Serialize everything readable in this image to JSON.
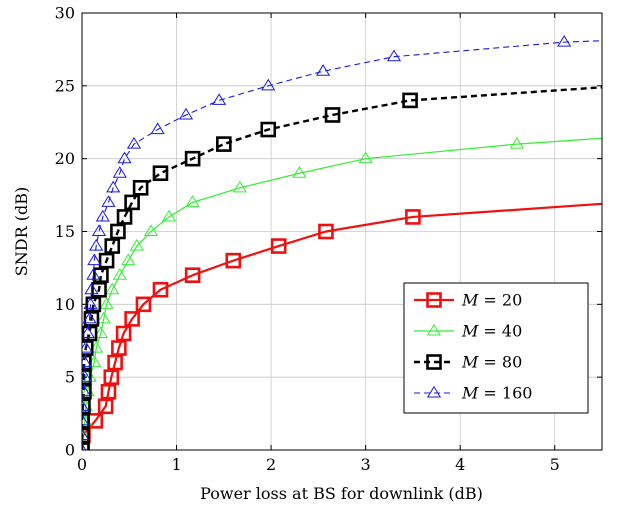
{
  "chart_data": {
    "type": "line",
    "title": "",
    "xlabel": "Power loss at BS for downlink (dB)",
    "ylabel": "SNDR (dB)",
    "xlim": [
      0,
      5.5
    ],
    "ylim": [
      0,
      30
    ],
    "xticks": [
      0,
      1,
      2,
      3,
      4,
      5
    ],
    "yticks": [
      0,
      5,
      10,
      15,
      20,
      25,
      30
    ],
    "xtick_labels": [
      "0",
      "1",
      "2",
      "3",
      "4",
      "5"
    ],
    "ytick_labels": [
      "0",
      "5",
      "10",
      "15",
      "20",
      "25",
      "30"
    ],
    "grid": true,
    "legend_position": "bottom-right",
    "series": [
      {
        "name": "M = 20",
        "legend_var": "M",
        "legend_value": "= 20",
        "color": "#ee1111",
        "line_style": "solid",
        "marker": "square",
        "points": [
          [
            0.0,
            0
          ],
          [
            0.01,
            1
          ],
          [
            0.14,
            2
          ],
          [
            0.25,
            3
          ],
          [
            0.28,
            4
          ],
          [
            0.31,
            5
          ],
          [
            0.35,
            6
          ],
          [
            0.39,
            7
          ],
          [
            0.44,
            8
          ],
          [
            0.53,
            9
          ],
          [
            0.65,
            10
          ],
          [
            0.83,
            11
          ],
          [
            1.17,
            12
          ],
          [
            1.6,
            13
          ],
          [
            2.08,
            14
          ],
          [
            2.58,
            15
          ],
          [
            3.5,
            16
          ],
          [
            5.5,
            16.9
          ]
        ]
      },
      {
        "name": "M = 40",
        "legend_var": "M",
        "legend_value": "= 40",
        "color": "#33ee33",
        "line_style": "solid",
        "marker": "triangle",
        "points": [
          [
            0.0,
            0
          ],
          [
            0.01,
            1
          ],
          [
            0.03,
            2
          ],
          [
            0.04,
            3
          ],
          [
            0.06,
            4
          ],
          [
            0.08,
            5
          ],
          [
            0.13,
            6
          ],
          [
            0.15,
            7
          ],
          [
            0.2,
            8
          ],
          [
            0.23,
            9
          ],
          [
            0.26,
            10
          ],
          [
            0.32,
            11
          ],
          [
            0.4,
            12
          ],
          [
            0.49,
            13
          ],
          [
            0.58,
            14
          ],
          [
            0.73,
            15
          ],
          [
            0.92,
            16
          ],
          [
            1.17,
            17
          ],
          [
            1.67,
            18
          ],
          [
            2.3,
            19
          ],
          [
            3.0,
            20
          ],
          [
            4.6,
            21
          ],
          [
            5.5,
            21.4
          ]
        ]
      },
      {
        "name": "M = 80",
        "legend_var": "M",
        "legend_value": "= 80",
        "color": "#000000",
        "line_style": "dashed",
        "marker": "square",
        "points": [
          [
            0.0,
            0
          ],
          [
            0.0,
            1
          ],
          [
            0.0,
            2
          ],
          [
            0.01,
            3
          ],
          [
            0.02,
            4
          ],
          [
            0.02,
            5
          ],
          [
            0.02,
            6
          ],
          [
            0.04,
            7
          ],
          [
            0.08,
            8
          ],
          [
            0.1,
            9
          ],
          [
            0.12,
            10
          ],
          [
            0.18,
            11
          ],
          [
            0.2,
            12
          ],
          [
            0.26,
            13
          ],
          [
            0.32,
            14
          ],
          [
            0.38,
            15
          ],
          [
            0.45,
            16
          ],
          [
            0.53,
            17
          ],
          [
            0.62,
            18
          ],
          [
            0.83,
            19
          ],
          [
            1.17,
            20
          ],
          [
            1.5,
            21
          ],
          [
            1.97,
            22
          ],
          [
            2.65,
            23
          ],
          [
            3.47,
            24
          ],
          [
            5.5,
            24.9
          ]
        ]
      },
      {
        "name": "M = 160",
        "legend_var": "M",
        "legend_value": "= 160",
        "color": "#1a1add",
        "line_style": "dashed",
        "marker": "triangle",
        "points": [
          [
            0.0,
            0
          ],
          [
            0.0,
            1
          ],
          [
            0.0,
            2
          ],
          [
            0.0,
            3
          ],
          [
            0.02,
            4
          ],
          [
            0.03,
            5
          ],
          [
            0.03,
            6
          ],
          [
            0.04,
            7
          ],
          [
            0.06,
            8
          ],
          [
            0.08,
            9
          ],
          [
            0.09,
            10
          ],
          [
            0.1,
            11
          ],
          [
            0.12,
            12
          ],
          [
            0.13,
            13
          ],
          [
            0.15,
            14
          ],
          [
            0.18,
            15
          ],
          [
            0.22,
            16
          ],
          [
            0.28,
            17
          ],
          [
            0.33,
            18
          ],
          [
            0.4,
            19
          ],
          [
            0.45,
            20
          ],
          [
            0.55,
            21
          ],
          [
            0.8,
            22
          ],
          [
            1.1,
            23
          ],
          [
            1.45,
            24
          ],
          [
            1.97,
            25
          ],
          [
            2.55,
            26
          ],
          [
            3.3,
            27
          ],
          [
            5.1,
            28
          ],
          [
            5.5,
            28.1
          ]
        ]
      }
    ]
  }
}
